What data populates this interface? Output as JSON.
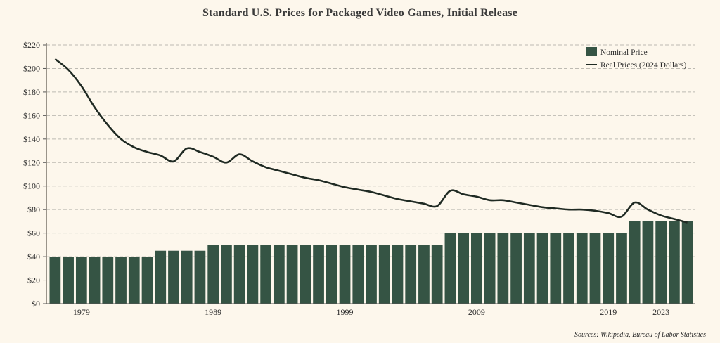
{
  "chart_data": {
    "type": "bar",
    "title": "Standard U.S. Prices for Packaged Video Games, Initial Release",
    "xlabel": "",
    "ylabel": "",
    "ylim": [
      0,
      220
    ],
    "yticks": [
      0,
      20,
      40,
      60,
      80,
      100,
      120,
      140,
      160,
      180,
      200,
      220
    ],
    "ytick_labels": [
      "$0",
      "$20",
      "$40",
      "$60",
      "$80",
      "$100",
      "$120",
      "$140",
      "$160",
      "$180",
      "$200",
      "$220"
    ],
    "xtick_labels": [
      {
        "year": 1979,
        "label": "1979"
      },
      {
        "year": 1989,
        "label": "1989"
      },
      {
        "year": 1999,
        "label": "1999"
      },
      {
        "year": 2009,
        "label": "2009"
      },
      {
        "year": 2019,
        "label": "2019"
      },
      {
        "year": 2023,
        "label": "2023"
      }
    ],
    "grid": "horizontal-dashed",
    "legend_position": "top-right",
    "categories": [
      1977,
      1978,
      1979,
      1980,
      1981,
      1982,
      1983,
      1984,
      1985,
      1986,
      1987,
      1988,
      1989,
      1990,
      1991,
      1992,
      1993,
      1994,
      1995,
      1996,
      1997,
      1998,
      1999,
      2000,
      2001,
      2002,
      2003,
      2004,
      2005,
      2006,
      2007,
      2008,
      2009,
      2010,
      2011,
      2012,
      2013,
      2014,
      2015,
      2016,
      2017,
      2018,
      2019,
      2020,
      2021,
      2022,
      2023,
      2024,
      2025
    ],
    "series": [
      {
        "name": "Nominal Price",
        "type": "bar",
        "color": "#355444",
        "values": [
          40,
          40,
          40,
          40,
          40,
          40,
          40,
          40,
          45,
          45,
          45,
          45,
          50,
          50,
          50,
          50,
          50,
          50,
          50,
          50,
          50,
          50,
          50,
          50,
          50,
          50,
          50,
          50,
          50,
          50,
          60,
          60,
          60,
          60,
          60,
          60,
          60,
          60,
          60,
          60,
          60,
          60,
          60,
          60,
          70,
          70,
          70,
          70,
          70
        ]
      },
      {
        "name": "Real Prices (2024 Dollars)",
        "type": "line",
        "color": "#1f2a23",
        "values": [
          208,
          199,
          185,
          167,
          152,
          140,
          133,
          129,
          126,
          121,
          132,
          129,
          125,
          120,
          127,
          121,
          116,
          113,
          110,
          107,
          105,
          102,
          99,
          97,
          95,
          92,
          89,
          87,
          85,
          83,
          96,
          93,
          91,
          88,
          88,
          86,
          84,
          82,
          81,
          80,
          80,
          79,
          77,
          74,
          86,
          80,
          75,
          72,
          69
        ]
      }
    ]
  },
  "source": "Sources: Wikipedia, Bureau of Labor Statistics"
}
